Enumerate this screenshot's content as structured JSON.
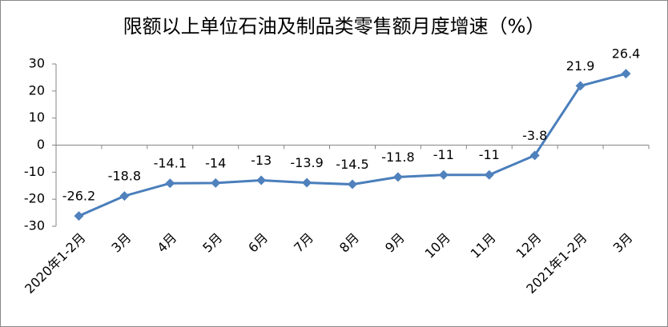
{
  "chart_data": {
    "type": "line",
    "title": "限额以上单位石油及制品类零售额月度增速（%）",
    "categories": [
      "2020年1-2月",
      "3月",
      "4月",
      "5月",
      "6月",
      "7月",
      "8月",
      "9月",
      "10月",
      "11月",
      "12月",
      "2021年1-2月",
      "3月"
    ],
    "values": [
      -26.2,
      -18.8,
      -14.1,
      -14,
      -13,
      -13.9,
      -14.5,
      -11.8,
      -11,
      -11,
      -3.8,
      21.9,
      26.4
    ],
    "color": "#4a7ebb",
    "ylim": [
      -30,
      30
    ],
    "yticks": [
      -30,
      -20,
      -10,
      0,
      10,
      20,
      30
    ],
    "grid": false
  }
}
